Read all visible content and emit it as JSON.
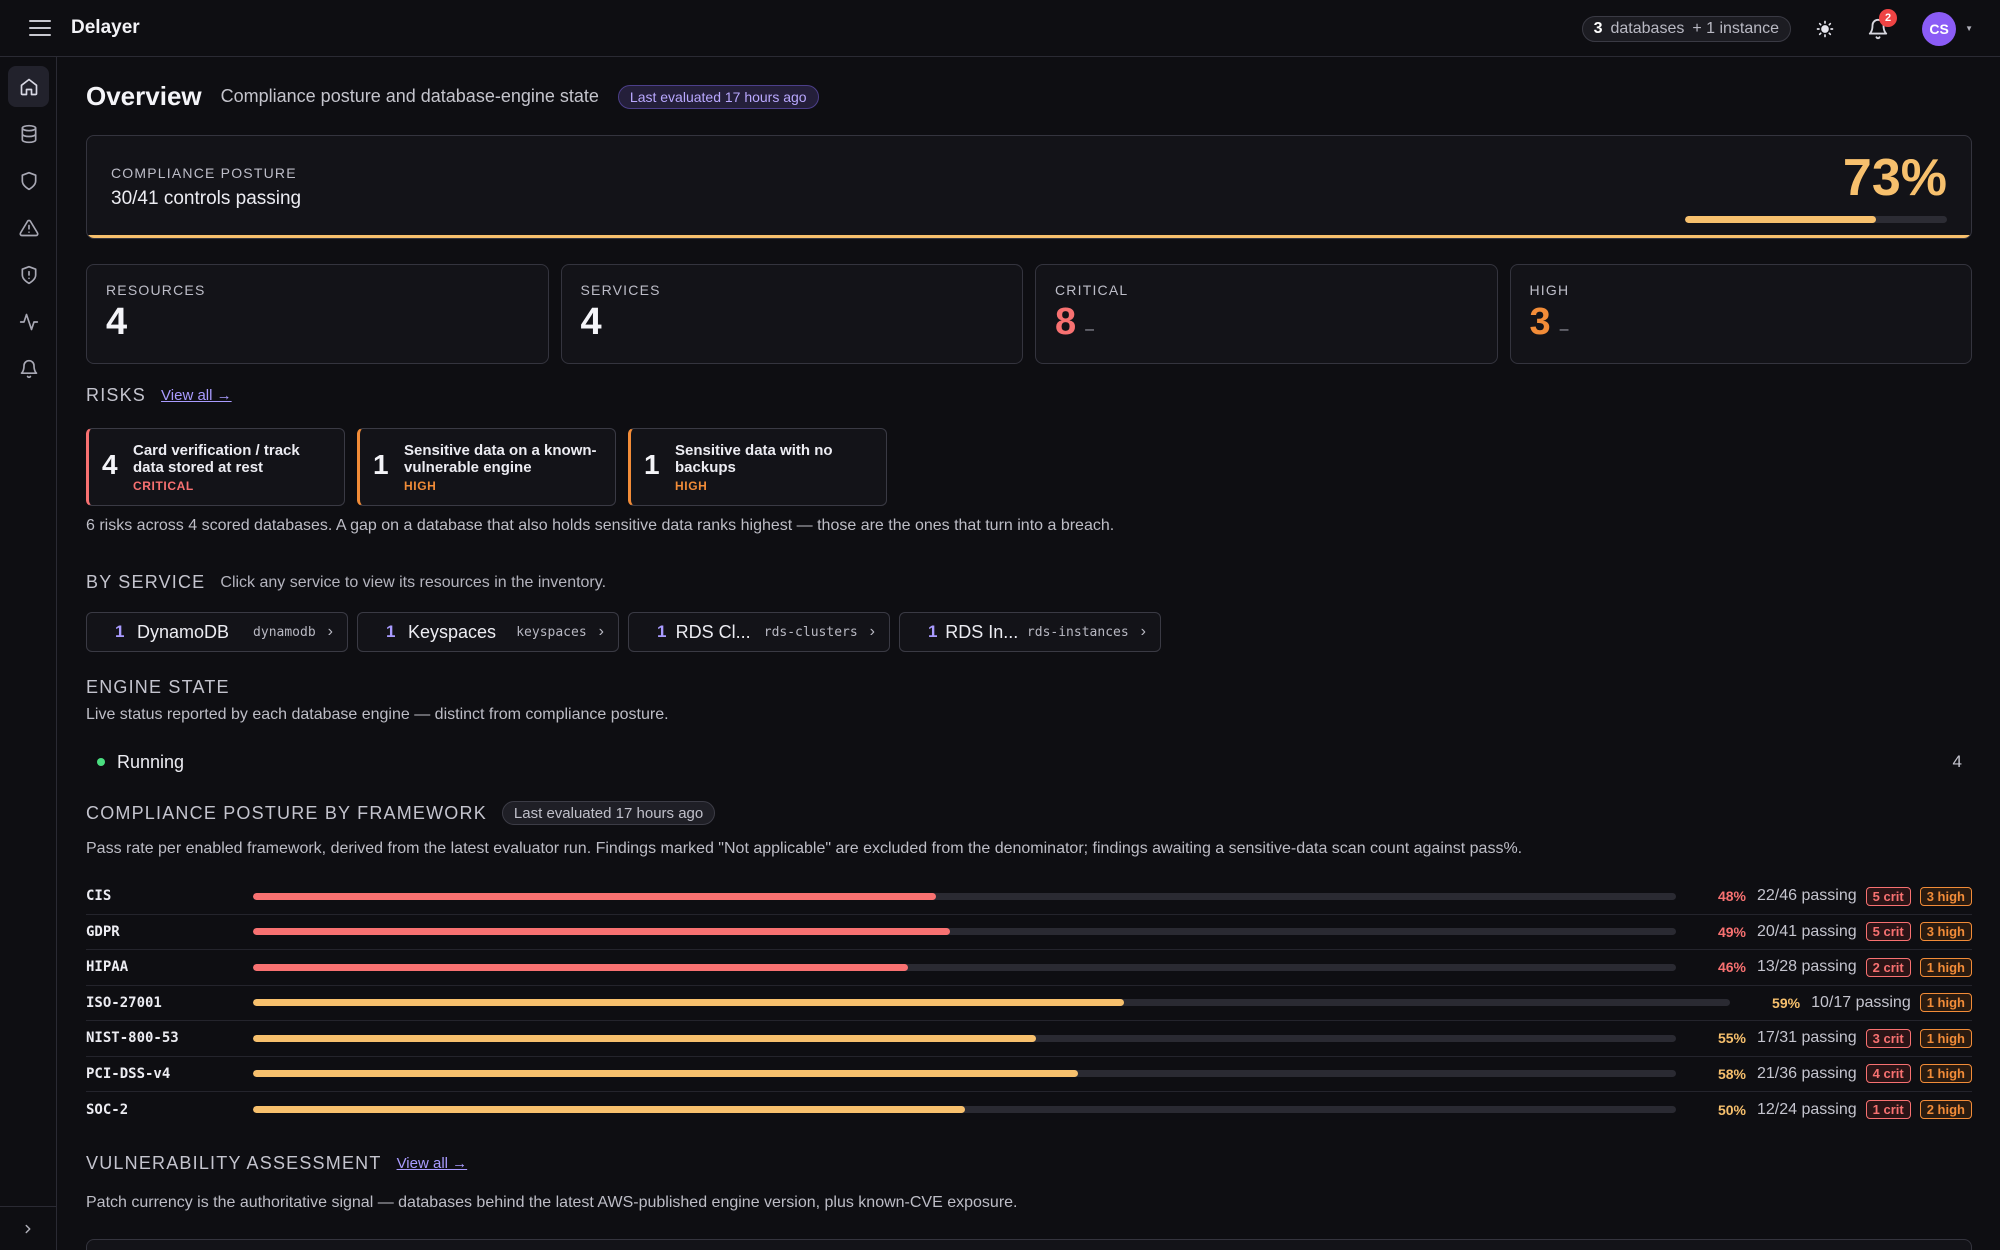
{
  "app": {
    "title": "Delayer"
  },
  "topbar": {
    "db_count": "3",
    "db_label": "databases",
    "instance_label": "+ 1 instance",
    "notification_count": "2",
    "avatar_initials": "CS"
  },
  "sidebar": {
    "items": [
      {
        "icon": "home-icon",
        "active": true
      },
      {
        "icon": "database-icon"
      },
      {
        "icon": "shield-icon"
      },
      {
        "icon": "warning-triangle-icon"
      },
      {
        "icon": "shield-alert-icon"
      },
      {
        "icon": "activity-icon"
      },
      {
        "icon": "bell-icon"
      }
    ],
    "expand_icon": "chevron-right-icon"
  },
  "header": {
    "title": "Overview",
    "subtitle": "Compliance posture and database-engine state",
    "evaluated": "Last evaluated 17 hours ago"
  },
  "posture": {
    "caption": "COMPLIANCE POSTURE",
    "controls": "30/41 controls passing",
    "percent": "73%",
    "fraction": 0.73
  },
  "stats": [
    {
      "label": "RESOURCES",
      "value": "4"
    },
    {
      "label": "SERVICES",
      "value": "4"
    },
    {
      "label": "CRITICAL",
      "value": "8",
      "dash": "–"
    },
    {
      "label": "HIGH",
      "value": "3",
      "dash": "–"
    }
  ],
  "risks": {
    "title": "RISKS",
    "view_all": "View all →",
    "items": [
      {
        "count": "4",
        "name": "Card verification / track data stored at rest",
        "severity": "CRITICAL"
      },
      {
        "count": "1",
        "name": "Sensitive data on a known-vulnerable engine",
        "severity": "HIGH"
      },
      {
        "count": "1",
        "name": "Sensitive data with no backups",
        "severity": "HIGH"
      }
    ],
    "summary": "6 risks across 4 scored databases. A gap on a database that also holds sensitive data ranks highest — those are the ones that turn into a breach."
  },
  "by_service": {
    "title": "BY SERVICE",
    "hint": "Click any service to view its resources in the inventory.",
    "items": [
      {
        "count": "1",
        "name": "DynamoDB",
        "slug": "dynamodb"
      },
      {
        "count": "1",
        "name": "Keyspaces",
        "slug": "keyspaces"
      },
      {
        "count": "1",
        "name": "RDS Cl...",
        "slug": "rds-clusters"
      },
      {
        "count": "1",
        "name": "RDS In...",
        "slug": "rds-instances"
      }
    ]
  },
  "engine_state": {
    "title": "ENGINE STATE",
    "description": "Live status reported by each database engine — distinct from compliance posture.",
    "status": "Running",
    "count": "4",
    "status_color": "#4ade80"
  },
  "frameworks": {
    "title": "COMPLIANCE POSTURE BY FRAMEWORK",
    "evaluated": "Last evaluated 17 hours ago",
    "description": "Pass rate per enabled framework, derived from the latest evaluator run. Findings marked \"Not applicable\" are excluded from the denominator; findings awaiting a sensitive-data scan count against pass%.",
    "rows": [
      {
        "name": "CIS",
        "rate": 0.48,
        "pct": "48%",
        "passing": "22/46 passing",
        "crit": "5 crit",
        "high": "3 high"
      },
      {
        "name": "GDPR",
        "rate": 0.49,
        "pct": "49%",
        "passing": "20/41 passing",
        "crit": "5 crit",
        "high": "3 high"
      },
      {
        "name": "HIPAA",
        "rate": 0.46,
        "pct": "46%",
        "passing": "13/28 passing",
        "crit": "2 crit",
        "high": "1 high"
      },
      {
        "name": "ISO-27001",
        "rate": 0.59,
        "pct": "59%",
        "passing": "10/17 passing",
        "crit": "",
        "high": "1 high"
      },
      {
        "name": "NIST-800-53",
        "rate": 0.55,
        "pct": "55%",
        "passing": "17/31 passing",
        "crit": "3 crit",
        "high": "1 high"
      },
      {
        "name": "PCI-DSS-v4",
        "rate": 0.58,
        "pct": "58%",
        "passing": "21/36 passing",
        "crit": "4 crit",
        "high": "1 high"
      },
      {
        "name": "SOC-2",
        "rate": 0.5,
        "pct": "50%",
        "passing": "12/24 passing",
        "crit": "1 crit",
        "high": "2 high"
      }
    ],
    "colors": {
      "low": "#f87171",
      "mid": "#f7c06d"
    }
  },
  "vulnerability": {
    "title": "VULNERABILITY ASSESSMENT",
    "view_all": "View all →",
    "description": "Patch currency is the authoritative signal — databases behind the latest AWS-published engine version, plus known-CVE exposure."
  },
  "colors": {
    "accent": "#a99bff",
    "critical": "#f87171",
    "high": "#f28c38",
    "posture": "#f7c06d"
  }
}
